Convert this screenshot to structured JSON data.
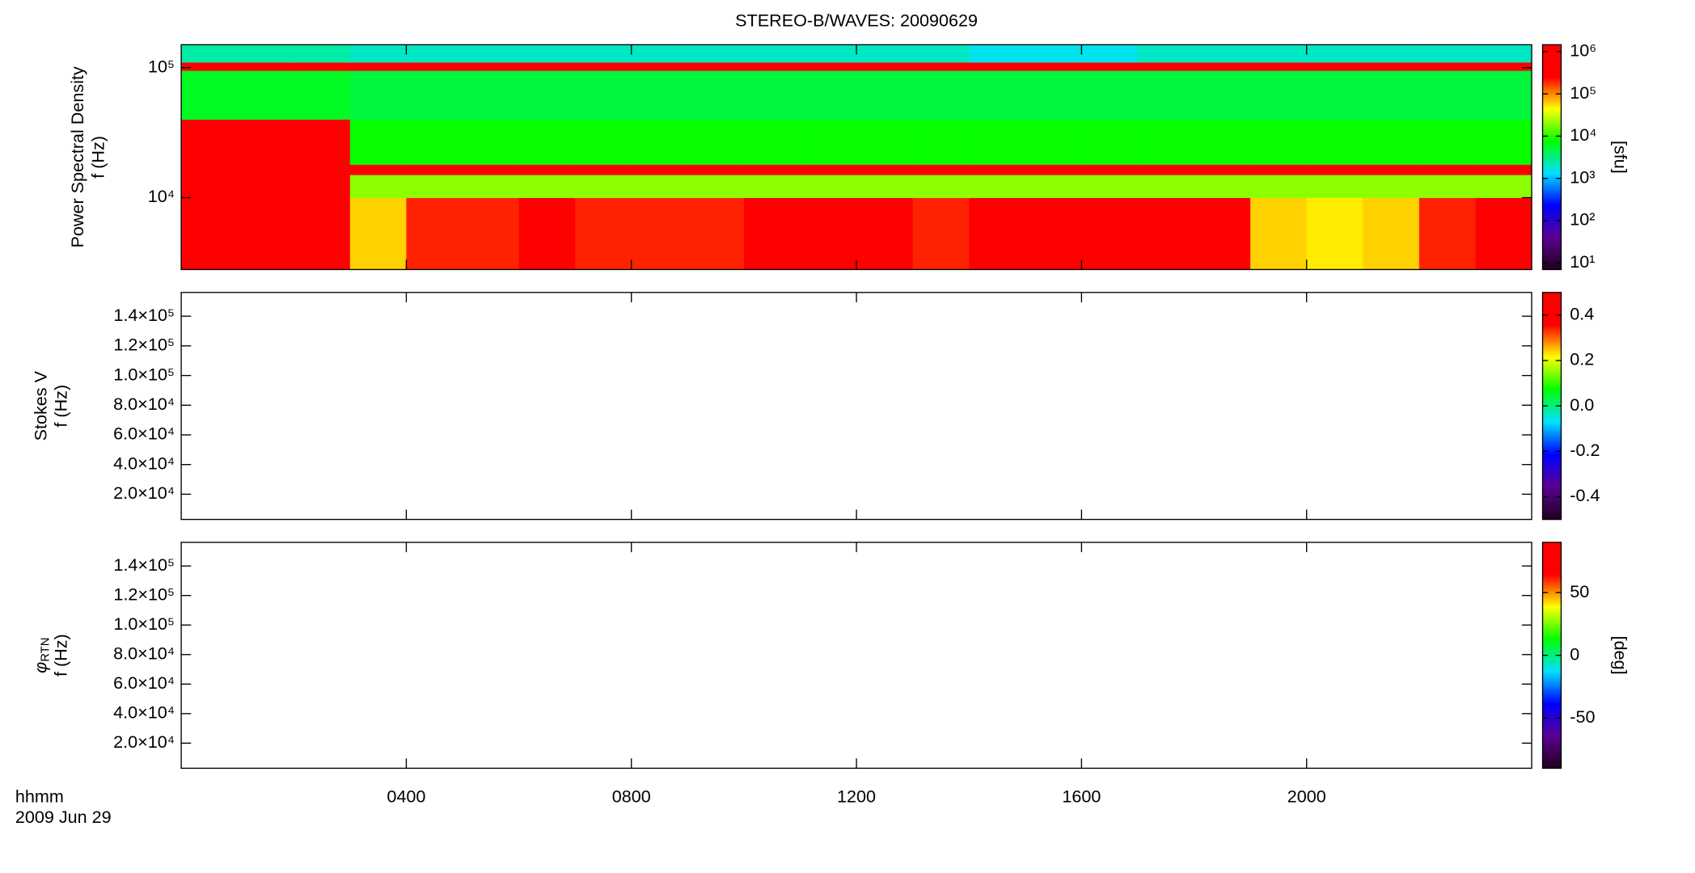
{
  "chart_data": [
    {
      "type": "spectrogram",
      "title": "STEREO-B/WAVES: 20090629",
      "ylabel": "Power Spectral Density",
      "yunit": "f (Hz)",
      "ylog": true,
      "xlim": [
        0,
        24
      ],
      "xticks": [
        4,
        8,
        12,
        16,
        20
      ],
      "ylim": [
        2800,
        150000
      ],
      "yticks": [
        {
          "value": 10000,
          "label": "10⁴"
        },
        {
          "value": 100000,
          "label": "10⁵"
        }
      ],
      "x_edges": [
        0,
        1,
        2,
        3,
        4,
        5,
        6,
        7,
        8,
        9,
        10,
        11,
        12,
        13,
        14,
        15,
        16,
        17,
        18,
        19,
        20,
        21,
        22,
        23,
        24
      ],
      "y_edges": [
        2800,
        10000,
        15000,
        18000,
        40000,
        95000,
        110000,
        150000
      ],
      "values": [
        [
          500000,
          500000,
          500000,
          60000,
          200000,
          200000,
          300000,
          200000,
          200000,
          200000,
          300000,
          300000,
          300000,
          200000,
          300000,
          300000,
          300000,
          300000,
          400000,
          60000,
          50000,
          60000,
          200000,
          300000
        ],
        [
          500000,
          500000,
          500000,
          20000,
          20000,
          20000,
          20000,
          20000,
          20000,
          20000,
          20000,
          20000,
          20000,
          20000,
          20000,
          20000,
          20000,
          20000,
          20000,
          20000,
          20000,
          20000,
          20000,
          20000
        ],
        [
          500000,
          500000,
          500000,
          500000,
          500000,
          500000,
          500000,
          500000,
          500000,
          500000,
          500000,
          500000,
          500000,
          500000,
          500000,
          500000,
          500000,
          500000,
          500000,
          500000,
          500000,
          500000,
          500000,
          500000
        ],
        [
          500000,
          500000,
          500000,
          8000,
          8000,
          8000,
          8000,
          8000,
          8000,
          8000,
          8000,
          8000,
          8000,
          8000,
          8000,
          8000,
          8000,
          8000,
          8000,
          8000,
          8000,
          8000,
          8000,
          8000
        ],
        [
          6000,
          6000,
          6000,
          5000,
          5000,
          5000,
          5000,
          5000,
          5000,
          5000,
          5000,
          5000,
          5000,
          5000,
          5000,
          5000,
          5000,
          5000,
          5000,
          5000,
          5000,
          5000,
          5000,
          5000
        ],
        [
          400000,
          400000,
          400000,
          300000,
          300000,
          300000,
          300000,
          300000,
          300000,
          300000,
          300000,
          300000,
          300000,
          300000,
          300000,
          300000,
          300000,
          300000,
          300000,
          300000,
          300000,
          300000,
          300000,
          300000
        ],
        [
          2500,
          2500,
          2500,
          2000,
          2000,
          2000,
          2000,
          2000,
          2000,
          2000,
          2000,
          2000,
          2000,
          2000,
          1500,
          1500,
          1500,
          2000,
          2000,
          2000,
          2000,
          2000,
          2000,
          2000
        ]
      ],
      "colormap": [
        "#200020",
        "#5a0090",
        "#0000ff",
        "#00e0ff",
        "#00ff00",
        "#ffff00",
        "#ff0000",
        "#ff0000"
      ],
      "colorbar": {
        "log": true,
        "lim": [
          7,
          1450000
        ],
        "label": "[sfu]",
        "ticks": [
          {
            "value": 10,
            "label": "10¹"
          },
          {
            "value": 100,
            "label": "10²"
          },
          {
            "value": 1000,
            "label": "10³"
          },
          {
            "value": 10000,
            "label": "10⁴"
          },
          {
            "value": 100000,
            "label": "10⁵"
          },
          {
            "value": 1000000,
            "label": "10⁶"
          }
        ]
      }
    },
    {
      "type": "spectrogram",
      "ylabel": "Stokes V",
      "yunit": "f (Hz)",
      "ylog": false,
      "xlim": [
        0,
        24
      ],
      "xticks": [
        4,
        8,
        12,
        16,
        20
      ],
      "ylim": [
        3000,
        156000
      ],
      "yticks": [
        {
          "value": 20000,
          "label": "2.0×10⁴"
        },
        {
          "value": 40000,
          "label": "4.0×10⁴"
        },
        {
          "value": 60000,
          "label": "6.0×10⁴"
        },
        {
          "value": 80000,
          "label": "8.0×10⁴"
        },
        {
          "value": 100000,
          "label": "1.0×10⁵"
        },
        {
          "value": 120000,
          "label": "1.2×10⁵"
        },
        {
          "value": 140000,
          "label": "1.4×10⁵"
        }
      ],
      "colormap": [
        "#200020",
        "#5a0090",
        "#0000ff",
        "#00e0ff",
        "#00ff00",
        "#ffff00",
        "#ff0000",
        "#ff0000"
      ],
      "colorbar": {
        "log": false,
        "lim": [
          -0.5,
          0.5
        ],
        "ticks": [
          -0.4,
          -0.2,
          {
            "value": 0,
            "label": "0.0"
          },
          0.2,
          0.4
        ]
      }
    },
    {
      "type": "spectrogram",
      "ylabel": "φ",
      "ylabel_sub": "RTN",
      "yunit": "f (Hz)",
      "ylog": false,
      "xlim": [
        0,
        24
      ],
      "xticks": [
        {
          "value": 4,
          "label": "0400"
        },
        {
          "value": 8,
          "label": "0800"
        },
        {
          "value": 12,
          "label": "1200"
        },
        {
          "value": 16,
          "label": "1600"
        },
        {
          "value": 20,
          "label": "2000"
        }
      ],
      "ylim": [
        3000,
        156000
      ],
      "yticks": [
        {
          "value": 20000,
          "label": "2.0×10⁴"
        },
        {
          "value": 40000,
          "label": "4.0×10⁴"
        },
        {
          "value": 60000,
          "label": "6.0×10⁴"
        },
        {
          "value": 80000,
          "label": "8.0×10⁴"
        },
        {
          "value": 100000,
          "label": "1.0×10⁵"
        },
        {
          "value": 120000,
          "label": "1.2×10⁵"
        },
        {
          "value": 140000,
          "label": "1.4×10⁵"
        }
      ],
      "colormap": [
        "#200020",
        "#5a0090",
        "#0000ff",
        "#00e0ff",
        "#00ff00",
        "#ffff00",
        "#ff0000",
        "#ff0000"
      ],
      "colorbar": {
        "log": false,
        "lim": [
          -90,
          90
        ],
        "label": "[deg]",
        "ticks": [
          -50,
          0,
          50
        ]
      },
      "xlabel": "hhmm",
      "date": "2009 Jun 29"
    }
  ]
}
